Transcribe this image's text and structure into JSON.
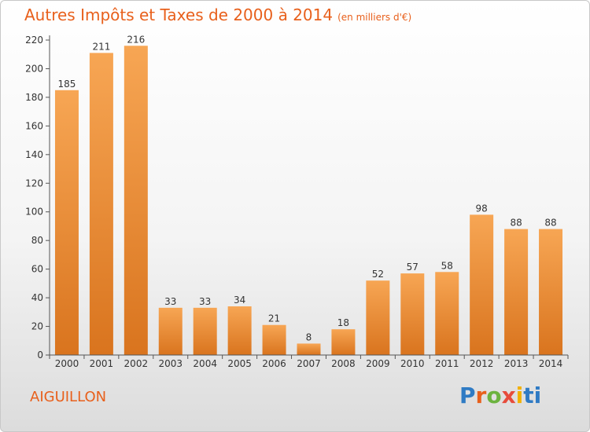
{
  "header": {
    "title": "Autres Impôts et Taxes de 2000 à 2014",
    "subtitle": "(en milliers d'€)"
  },
  "footer": {
    "town": "AIGUILLON",
    "brand": [
      "P",
      "r",
      "o",
      "x",
      "i",
      "ti"
    ]
  },
  "colors": {
    "accent": "#e8601c",
    "bar_top": "#f7a654",
    "bar_bottom": "#d9741e",
    "axis": "#555555"
  },
  "chart_data": {
    "type": "bar",
    "categories": [
      "2000",
      "2001",
      "2002",
      "2003",
      "2004",
      "2005",
      "2006",
      "2007",
      "2008",
      "2009",
      "2010",
      "2011",
      "2012",
      "2013",
      "2014"
    ],
    "values": [
      185,
      211,
      216,
      33,
      33,
      34,
      21,
      8,
      18,
      52,
      57,
      58,
      98,
      88,
      88
    ],
    "ylim": [
      0,
      220
    ],
    "yticks": [
      0,
      20,
      40,
      60,
      80,
      100,
      120,
      140,
      160,
      180,
      200,
      220
    ],
    "grid": false,
    "legend": "none",
    "data_labels": true
  }
}
